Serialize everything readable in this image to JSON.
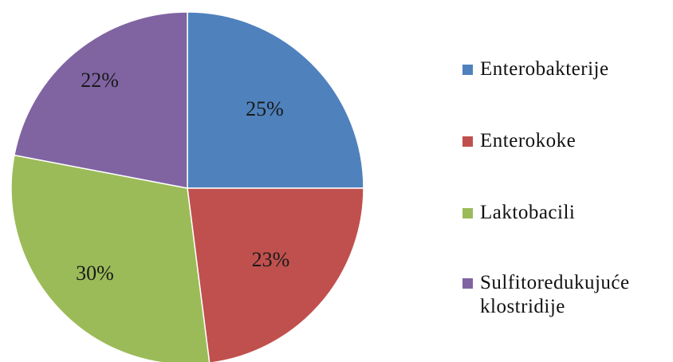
{
  "chart_data": {
    "type": "pie",
    "title": "",
    "start_angle_deg": 90,
    "direction": "clockwise",
    "legend_position": "right",
    "series": [
      {
        "categories": [
          "Enterobakterije",
          "Enterokoke",
          "Laktobacili",
          "Sulfitoredukujuće klostridije"
        ],
        "values": [
          25,
          23,
          30,
          22
        ],
        "labels": [
          "25%",
          "23%",
          "30%",
          "22%"
        ],
        "colors": [
          "#4F81BD",
          "#C0504D",
          "#9BBB59",
          "#8064A2"
        ]
      }
    ]
  },
  "legend": {
    "items": [
      {
        "label": "Enterobakterije",
        "color": "#4F81BD"
      },
      {
        "label": "Enterokoke",
        "color": "#C0504D"
      },
      {
        "label": "Laktobacili",
        "color": "#9BBB59"
      },
      {
        "label": "Sulfitoredukujuće klostridije",
        "color": "#8064A2"
      }
    ]
  }
}
